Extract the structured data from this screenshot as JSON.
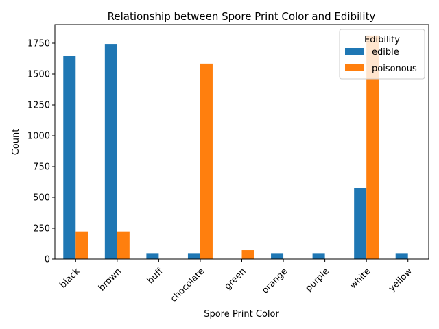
{
  "chart_data": {
    "type": "bar",
    "title": "Relationship between Spore Print Color and Edibility",
    "xlabel": "Spore Print Color",
    "ylabel": "Count",
    "categories": [
      "black",
      "brown",
      "buff",
      "chocolate",
      "green",
      "orange",
      "purple",
      "white",
      "yellow"
    ],
    "series": [
      {
        "name": "edible",
        "color": "#1f77b4",
        "values": [
          1648,
          1744,
          48,
          48,
          0,
          48,
          48,
          576,
          48
        ]
      },
      {
        "name": "poisonous",
        "color": "#ff7f0e",
        "values": [
          224,
          224,
          0,
          1584,
          72,
          0,
          0,
          1812,
          0
        ]
      }
    ],
    "ylim": [
      0,
      1900
    ],
    "yticks": [
      0,
      250,
      500,
      750,
      1000,
      1250,
      1500,
      1750
    ],
    "legend": {
      "title": "Edibility",
      "placement": "top-right"
    },
    "grid": false
  }
}
